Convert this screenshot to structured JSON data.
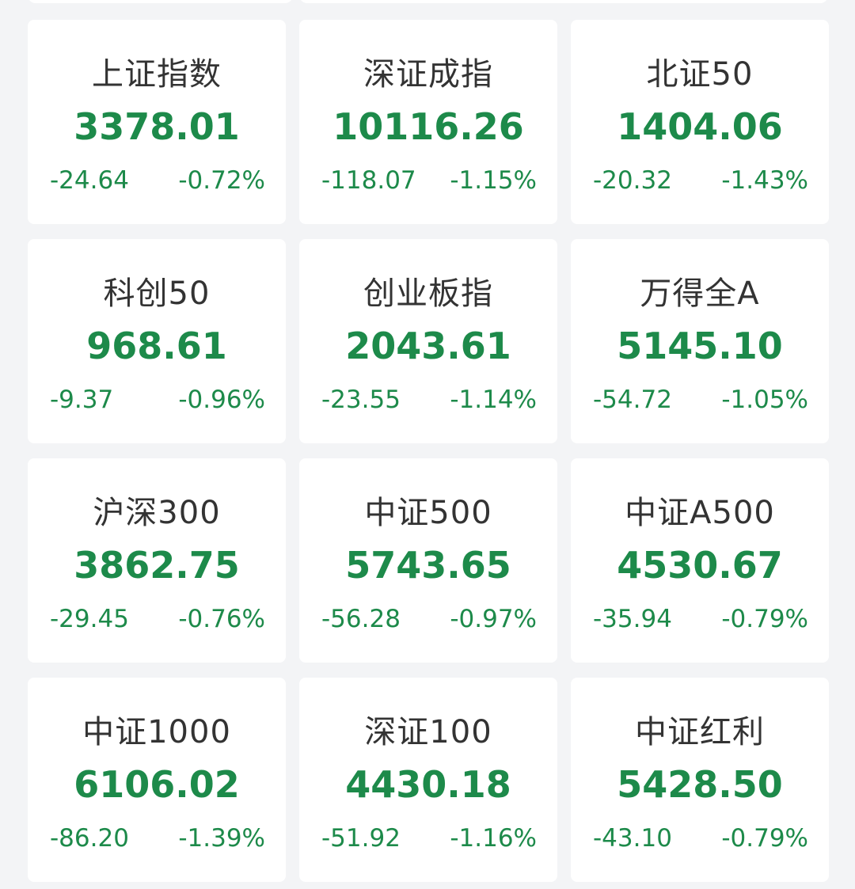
{
  "colors": {
    "down": "#1d8a4a",
    "background": "#f3f4f6",
    "card": "#ffffff",
    "title": "#333333"
  },
  "indices": [
    {
      "name": "上证指数",
      "value": "3378.01",
      "change": "-24.64",
      "pct": "-0.72%"
    },
    {
      "name": "深证成指",
      "value": "10116.26",
      "change": "-118.07",
      "pct": "-1.15%"
    },
    {
      "name": "北证50",
      "value": "1404.06",
      "change": "-20.32",
      "pct": "-1.43%"
    },
    {
      "name": "科创50",
      "value": "968.61",
      "change": "-9.37",
      "pct": "-0.96%"
    },
    {
      "name": "创业板指",
      "value": "2043.61",
      "change": "-23.55",
      "pct": "-1.14%"
    },
    {
      "name": "万得全A",
      "value": "5145.10",
      "change": "-54.72",
      "pct": "-1.05%"
    },
    {
      "name": "沪深300",
      "value": "3862.75",
      "change": "-29.45",
      "pct": "-0.76%"
    },
    {
      "name": "中证500",
      "value": "5743.65",
      "change": "-56.28",
      "pct": "-0.97%"
    },
    {
      "name": "中证A500",
      "value": "4530.67",
      "change": "-35.94",
      "pct": "-0.79%"
    },
    {
      "name": "中证1000",
      "value": "6106.02",
      "change": "-86.20",
      "pct": "-1.39%"
    },
    {
      "name": "深证100",
      "value": "4430.18",
      "change": "-51.92",
      "pct": "-1.16%"
    },
    {
      "name": "中证红利",
      "value": "5428.50",
      "change": "-43.10",
      "pct": "-0.79%"
    }
  ]
}
